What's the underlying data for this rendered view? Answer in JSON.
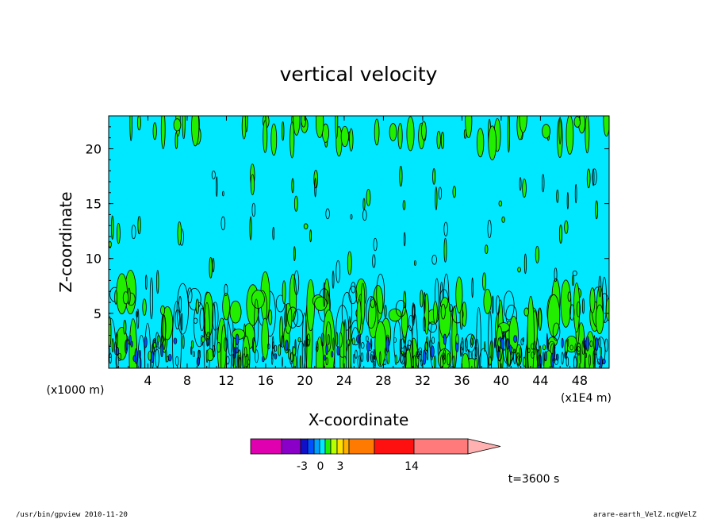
{
  "chart_data": {
    "type": "heatmap",
    "title": "vertical velocity",
    "xlabel": "X-coordinate",
    "ylabel": "Z-coordinate",
    "x_unit_left": "(x1000 m)",
    "x_unit_right": "(x1E4 m)",
    "x_ticks": [
      4,
      8,
      12,
      16,
      20,
      24,
      28,
      32,
      36,
      40,
      44,
      48
    ],
    "y_ticks": [
      5,
      10,
      15,
      20
    ],
    "xlim": [
      0,
      51
    ],
    "ylim": [
      0,
      23
    ],
    "grid": false,
    "background_color": "#00e8ff",
    "positive_color": "#22ee00",
    "colorbar": {
      "levels": [
        -3,
        0,
        3,
        14
      ],
      "tick_labels": [
        "-3",
        "0",
        "3",
        "14"
      ],
      "colors": [
        "#e000b0",
        "#8a00c8",
        "#1010c8",
        "#0050ff",
        "#00a0ff",
        "#00e8ff",
        "#22ee00",
        "#b8ff00",
        "#ffe000",
        "#ffb000",
        "#ff7a00",
        "#ff1010",
        "#ff7a7a",
        "#ffb0b0"
      ]
    },
    "time_label": "t=3600 s"
  },
  "footer": {
    "left": "/usr/bin/gpview   2010-11-20",
    "right": "arare-earth_VelZ.nc@VelZ"
  }
}
